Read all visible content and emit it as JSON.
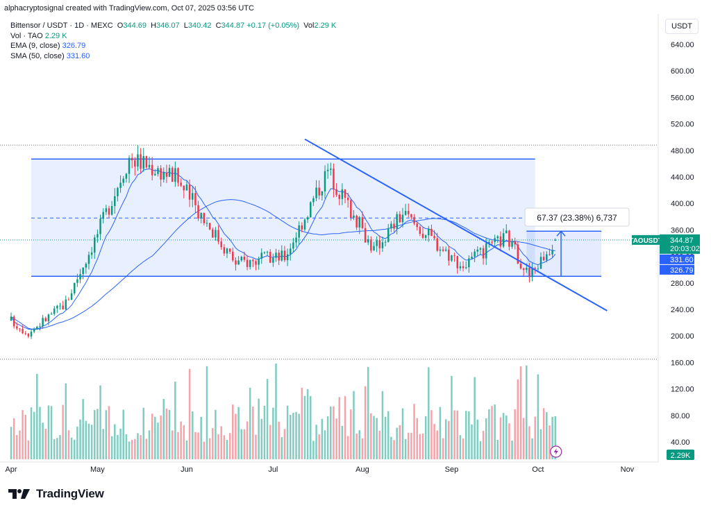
{
  "header": {
    "attribution": "alphacryptosignal created with TradingView.com, Oct 07, 2025 03:56 UTC"
  },
  "legend": {
    "symbol": "Bittensor / USDT · 1D · MEXC",
    "open_label": "O",
    "open": "344.69",
    "high_label": "H",
    "high": "346.07",
    "low_label": "L",
    "low": "340.42",
    "close_label": "C",
    "close": "344.87",
    "change": "+0.17 (+0.05%)",
    "vol_label": "Vol",
    "vol": "2.29 K",
    "vol_ind_label": "Vol · TAO",
    "vol_ind_value": "2.29 K",
    "ema_label": "EMA (9, close)",
    "ema_value": "326.79",
    "sma_label": "SMA (50, close)",
    "sma_value": "331.60"
  },
  "currency_button": "USDT",
  "footer": {
    "brand": "TradingView"
  },
  "colors": {
    "up": "#089981",
    "down": "#f23645",
    "vol_up": "#7fccc0",
    "vol_down": "#f7a1a8",
    "blue": "#2962ff",
    "range_fill": "#dbe6fd",
    "text": "#131722",
    "axis_text": "#131722"
  },
  "chart_data": {
    "type": "candlestick",
    "symbol": "TAOUSDT",
    "price_axis": {
      "ticks": [
        40,
        80,
        120,
        160,
        200,
        240,
        280,
        320,
        360,
        400,
        440,
        480,
        520,
        560,
        600,
        640
      ],
      "range": [
        40,
        640
      ],
      "currency": "USDT"
    },
    "time_axis": {
      "labels": [
        {
          "date": "2025-04-01",
          "label": "Apr"
        },
        {
          "date": "2025-05-01",
          "label": "May"
        },
        {
          "date": "2025-06-01",
          "label": "Jun"
        },
        {
          "date": "2025-07-01",
          "label": "Jul"
        },
        {
          "date": "2025-08-01",
          "label": "Aug"
        },
        {
          "date": "2025-09-01",
          "label": "Sep"
        },
        {
          "date": "2025-10-01",
          "label": "Oct"
        },
        {
          "date": "2025-11-01",
          "label": "Nov"
        }
      ],
      "start": "2025-04-01",
      "end": "2025-11-05"
    },
    "ohlc_sample": [
      {
        "date": "2025-04-07",
        "close": 205
      },
      {
        "date": "2025-04-20",
        "close": 250
      },
      {
        "date": "2025-05-01",
        "close": 355
      },
      {
        "date": "2025-05-12",
        "close": 470
      },
      {
        "date": "2025-05-28",
        "close": 440
      },
      {
        "date": "2025-06-18",
        "close": 310
      },
      {
        "date": "2025-07-05",
        "close": 320
      },
      {
        "date": "2025-07-20",
        "close": 450
      },
      {
        "date": "2025-08-05",
        "close": 330
      },
      {
        "date": "2025-08-15",
        "close": 385
      },
      {
        "date": "2025-09-05",
        "close": 305
      },
      {
        "date": "2025-09-20",
        "close": 350
      },
      {
        "date": "2025-09-28",
        "close": 290
      },
      {
        "date": "2025-10-07",
        "close": 344.87
      }
    ],
    "horizontal_lines": {
      "range_top": 467,
      "range_mid": 378,
      "range_bottom": 290,
      "high_dotted": 488,
      "low_dotted": 165,
      "last_price_dotted": 344.87
    },
    "trendline": {
      "from": {
        "date": "2025-07-12",
        "price": 497
      },
      "to": {
        "date": "2025-10-25",
        "price": 238
      }
    },
    "measure": {
      "label": "67.37 (23.38%) 6,737",
      "from_date": "2025-09-27",
      "to_date": "2025-10-23",
      "from_price": 290,
      "to_price": 358
    },
    "price_badges": [
      {
        "label": "TAOUSDT",
        "value": "344.87",
        "sub": "20:03:02",
        "color": "#089981"
      },
      {
        "value": "331.60",
        "color": "#2962ff"
      },
      {
        "value": "326.79",
        "color": "#2962ff"
      }
    ],
    "volume_badge": "2.29K",
    "series": [
      {
        "name": "EMA (9, close)",
        "last": 326.79
      },
      {
        "name": "SMA (50, close)",
        "last": 331.6
      }
    ]
  }
}
